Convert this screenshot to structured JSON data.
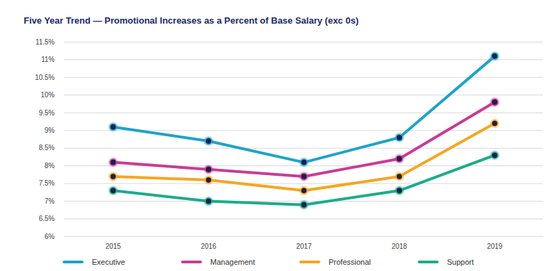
{
  "chart_data": {
    "type": "line",
    "title": "Five Year Trend — Promotional Increases as a Percent of Base Salary (exc 0s)",
    "categories": [
      "2015",
      "2016",
      "2017",
      "2018",
      "2019"
    ],
    "series": [
      {
        "name": "Executive",
        "color": "#1fa3c8",
        "values": [
          9.1,
          8.7,
          8.1,
          8.8,
          11.1
        ]
      },
      {
        "name": "Management",
        "color": "#c93b94",
        "values": [
          8.1,
          7.9,
          7.7,
          8.2,
          9.8
        ]
      },
      {
        "name": "Professional",
        "color": "#f5a623",
        "values": [
          7.7,
          7.6,
          7.3,
          7.7,
          9.2
        ]
      },
      {
        "name": "Support",
        "color": "#1dab8a",
        "values": [
          7.3,
          7.0,
          6.9,
          7.3,
          8.3
        ]
      }
    ],
    "ylim": [
      6,
      11.5
    ],
    "yticks": [
      {
        "value": 6,
        "label": "6%"
      },
      {
        "value": 6.5,
        "label": "6.5%"
      },
      {
        "value": 7,
        "label": "7%"
      },
      {
        "value": 7.5,
        "label": "7.5%"
      },
      {
        "value": 8,
        "label": "8%"
      },
      {
        "value": 8.5,
        "label": "8.5%"
      },
      {
        "value": 9,
        "label": "9%"
      },
      {
        "value": 9.5,
        "label": "9.5%"
      },
      {
        "value": 10,
        "label": "10%"
      },
      {
        "value": 10.5,
        "label": "10.5%"
      },
      {
        "value": 11,
        "label": "11%"
      },
      {
        "value": 11.5,
        "label": "11.5%"
      }
    ],
    "grid": true,
    "legend": "bottom",
    "marker": "circle"
  }
}
